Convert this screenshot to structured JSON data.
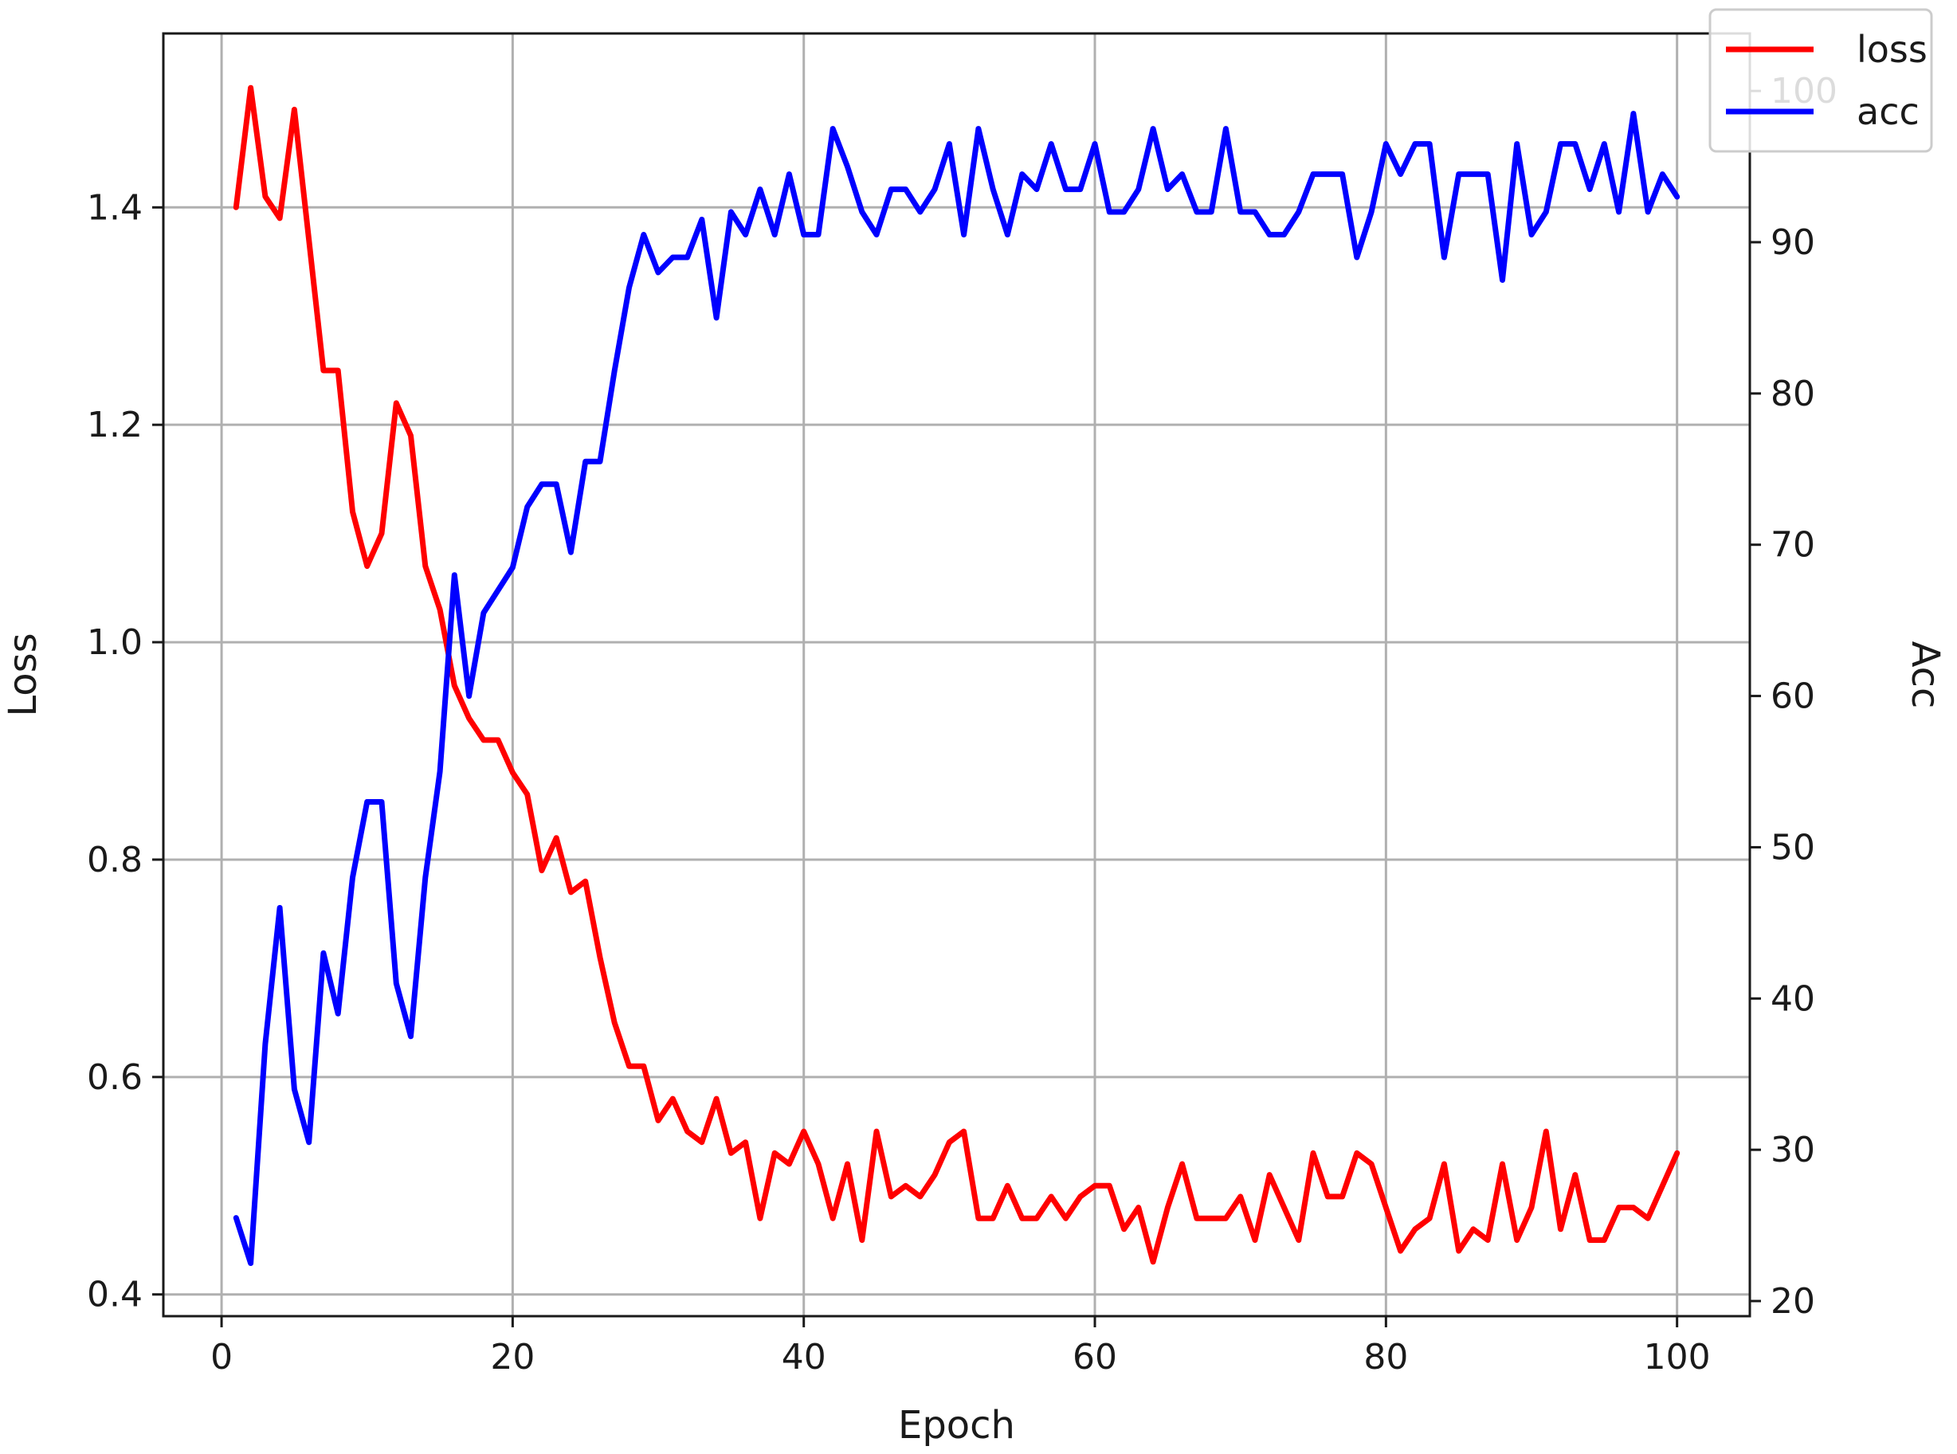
{
  "chart_data": {
    "type": "line",
    "xlabel": "Epoch",
    "ylabel": "Loss",
    "y2label": "Acc",
    "xlim": [
      -4,
      105
    ],
    "ylim": [
      0.38,
      1.56
    ],
    "y2lim": [
      19,
      103.8
    ],
    "x_ticks": [
      0,
      20,
      40,
      60,
      80,
      100
    ],
    "y_ticks": [
      0.4,
      0.6,
      0.8,
      1.0,
      1.2,
      1.4
    ],
    "y2_ticks": [
      20,
      30,
      40,
      50,
      60,
      70,
      80,
      90,
      100
    ],
    "x_tick_labels": [
      "0",
      "20",
      "40",
      "60",
      "80",
      "100"
    ],
    "y_tick_labels": [
      "0.4",
      "0.6",
      "0.8",
      "1.0",
      "1.2",
      "1.4"
    ],
    "y2_tick_labels": [
      "20",
      "30",
      "40",
      "50",
      "60",
      "70",
      "80",
      "90",
      "100"
    ],
    "grid": true,
    "legend": {
      "placement": "top-right"
    },
    "x": [
      1,
      2,
      3,
      4,
      5,
      6,
      7,
      8,
      9,
      10,
      11,
      12,
      13,
      14,
      15,
      16,
      17,
      18,
      19,
      20,
      21,
      22,
      23,
      24,
      25,
      26,
      27,
      28,
      29,
      30,
      31,
      32,
      33,
      34,
      35,
      36,
      37,
      38,
      39,
      40,
      41,
      42,
      43,
      44,
      45,
      46,
      47,
      48,
      49,
      50,
      51,
      52,
      53,
      54,
      55,
      56,
      57,
      58,
      59,
      60,
      61,
      62,
      63,
      64,
      65,
      66,
      67,
      68,
      69,
      70,
      71,
      72,
      73,
      74,
      75,
      76,
      77,
      78,
      79,
      80,
      81,
      82,
      83,
      84,
      85,
      86,
      87,
      88,
      89,
      90,
      91,
      92,
      93,
      94,
      95,
      96,
      97,
      98,
      99,
      100
    ],
    "series": [
      {
        "name": "loss",
        "axis": "left",
        "color": "#ff0000",
        "values": [
          1.4,
          1.51,
          1.41,
          1.39,
          1.49,
          1.37,
          1.25,
          1.25,
          1.12,
          1.07,
          1.1,
          1.22,
          1.19,
          1.07,
          1.03,
          0.96,
          0.93,
          0.91,
          0.91,
          0.88,
          0.86,
          0.79,
          0.82,
          0.77,
          0.78,
          0.71,
          0.65,
          0.61,
          0.61,
          0.56,
          0.58,
          0.55,
          0.54,
          0.58,
          0.53,
          0.54,
          0.47,
          0.53,
          0.52,
          0.55,
          0.52,
          0.47,
          0.52,
          0.45,
          0.55,
          0.49,
          0.5,
          0.49,
          0.51,
          0.54,
          0.55,
          0.47,
          0.47,
          0.5,
          0.47,
          0.47,
          0.49,
          0.47,
          0.49,
          0.5,
          0.5,
          0.46,
          0.48,
          0.43,
          0.48,
          0.52,
          0.47,
          0.47,
          0.47,
          0.49,
          0.45,
          0.51,
          0.48,
          0.45,
          0.53,
          0.49,
          0.49,
          0.53,
          0.52,
          0.48,
          0.44,
          0.46,
          0.47,
          0.52,
          0.44,
          0.46,
          0.45,
          0.52,
          0.45,
          0.48,
          0.55,
          0.46,
          0.51,
          0.45,
          0.45,
          0.48,
          0.48,
          0.47,
          0.5,
          0.53
        ]
      },
      {
        "name": "acc",
        "axis": "right",
        "color": "#0000ff",
        "values": [
          25.5,
          22.5,
          37.0,
          46.0,
          34.0,
          30.5,
          43.0,
          39.0,
          48.0,
          53.0,
          53.0,
          41.0,
          37.5,
          48.0,
          55.0,
          68.0,
          60.0,
          65.5,
          67.0,
          68.5,
          72.5,
          74.0,
          74.0,
          69.5,
          75.5,
          75.5,
          81.5,
          87.0,
          90.5,
          88.0,
          89.0,
          89.0,
          91.5,
          85.0,
          92.0,
          90.5,
          93.5,
          90.5,
          94.5,
          90.5,
          90.5,
          97.5,
          95.0,
          92.0,
          90.5,
          93.5,
          93.5,
          92.0,
          93.5,
          96.5,
          90.5,
          97.5,
          93.5,
          90.5,
          94.5,
          93.5,
          96.5,
          93.5,
          93.5,
          96.5,
          92.0,
          92.0,
          93.5,
          97.5,
          93.5,
          94.5,
          92.0,
          92.0,
          97.5,
          92.0,
          92.0,
          90.5,
          90.5,
          92.0,
          94.5,
          94.5,
          94.5,
          89.0,
          92.0,
          96.5,
          94.5,
          96.5,
          96.5,
          89.0,
          94.5,
          94.5,
          94.5,
          87.5,
          96.5,
          90.5,
          92.0,
          96.5,
          96.5,
          93.5,
          96.5,
          92.0,
          98.5,
          92.0,
          94.5,
          93.0
        ]
      }
    ]
  }
}
